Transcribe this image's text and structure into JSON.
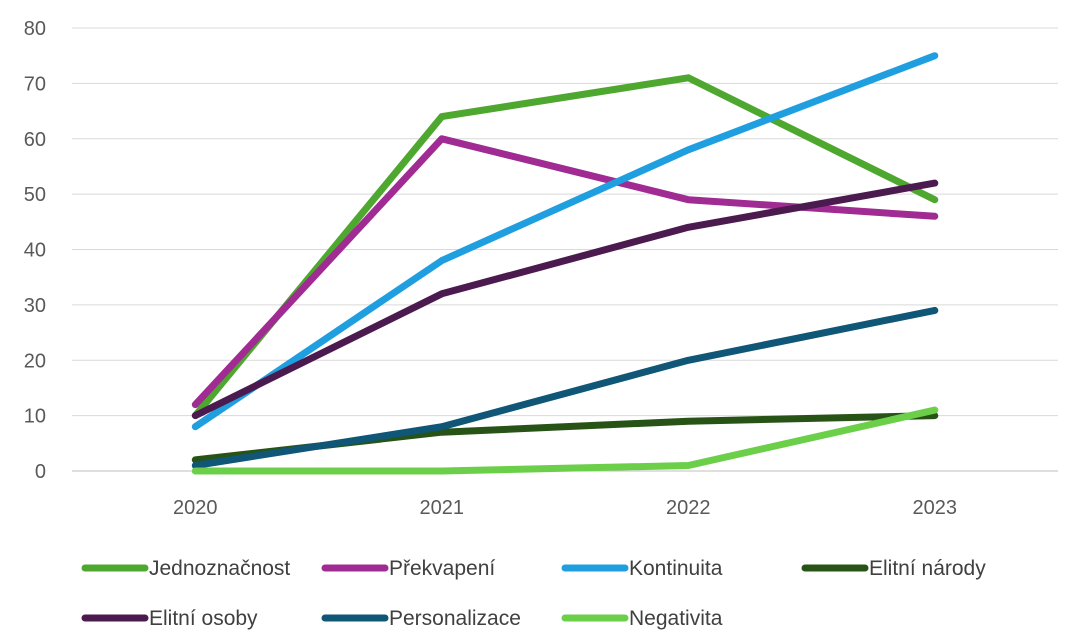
{
  "chart_data": {
    "type": "line",
    "title": "",
    "xlabel": "",
    "ylabel": "",
    "categories": [
      "2020",
      "2021",
      "2022",
      "2023"
    ],
    "ylim": [
      0,
      80
    ],
    "yticks": [
      "0",
      "10",
      "20",
      "30",
      "40",
      "50",
      "60",
      "70",
      "80"
    ],
    "grid": true,
    "legend_position": "bottom",
    "series": [
      {
        "name": "Jednoznačnost",
        "color": "#4ea72e",
        "values": [
          10,
          64,
          71,
          49
        ]
      },
      {
        "name": "Překvapení",
        "color": "#a02b93",
        "values": [
          12,
          60,
          49,
          46
        ]
      },
      {
        "name": "Kontinuita",
        "color": "#1f9fe0",
        "values": [
          8,
          38,
          58,
          75
        ]
      },
      {
        "name": "Elitní národy",
        "color": "#275317",
        "values": [
          2,
          7,
          9,
          10
        ]
      },
      {
        "name": "Elitní osoby",
        "color": "#4b1b4f",
        "values": [
          10,
          32,
          44,
          52
        ]
      },
      {
        "name": "Personalizace",
        "color": "#0f5677",
        "values": [
          1,
          8,
          20,
          29
        ]
      },
      {
        "name": "Negativita",
        "color": "#6ccf4a",
        "values": [
          0,
          0,
          1,
          11
        ]
      }
    ]
  }
}
